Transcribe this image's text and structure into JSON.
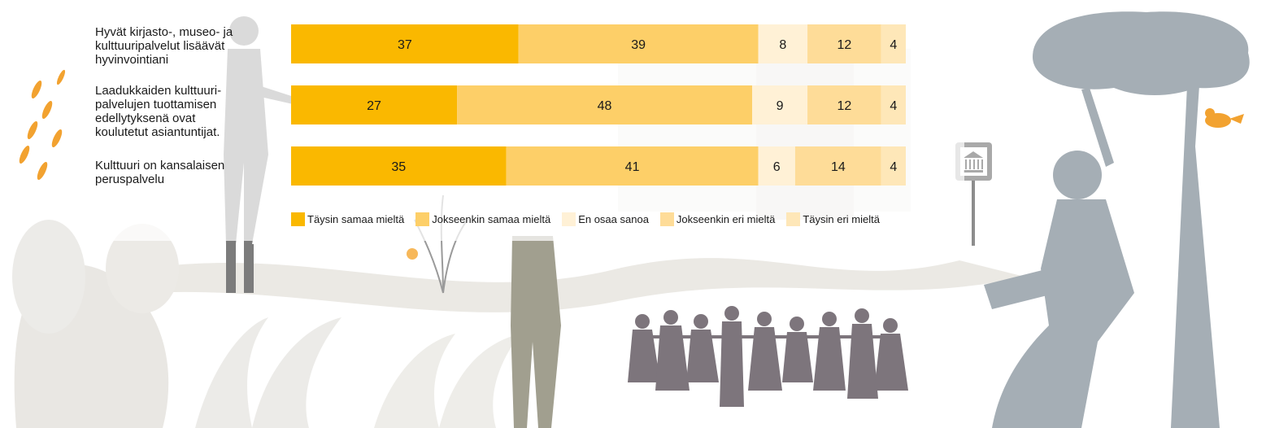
{
  "chart_data": {
    "type": "bar",
    "orientation": "horizontal",
    "stacked": true,
    "categories": [
      "Hyvät kirjasto-, museo- ja\nkulttuuripalvelut lisäävät\nhyvinvointiani",
      "Laadukkaiden kulttuuri-\npalvelujen tuottamisen\nedellytyksenä ovat\nkoulutetut asiantuntijat.",
      "Kulttuuri on kansalaisen\nperuspalvelu"
    ],
    "series": [
      {
        "name": "Täysin samaa mieltä",
        "values": [
          37,
          27,
          35
        ],
        "color": "#fab800"
      },
      {
        "name": "Jokseenkin samaa mieltä",
        "values": [
          39,
          48,
          41
        ],
        "color": "#fdcf68"
      },
      {
        "name": "En osaa sanoa",
        "values": [
          8,
          9,
          6
        ],
        "color": "#fff1d6"
      },
      {
        "name": "Jokseenkin eri mieltä",
        "values": [
          12,
          12,
          14
        ],
        "color": "#fedc98"
      },
      {
        "name": "Täysin eri mieltä",
        "values": [
          4,
          4,
          4
        ],
        "color": "#fee7b8"
      }
    ],
    "xlim": [
      0,
      100
    ],
    "grid": false,
    "legend_position": "bottom"
  }
}
